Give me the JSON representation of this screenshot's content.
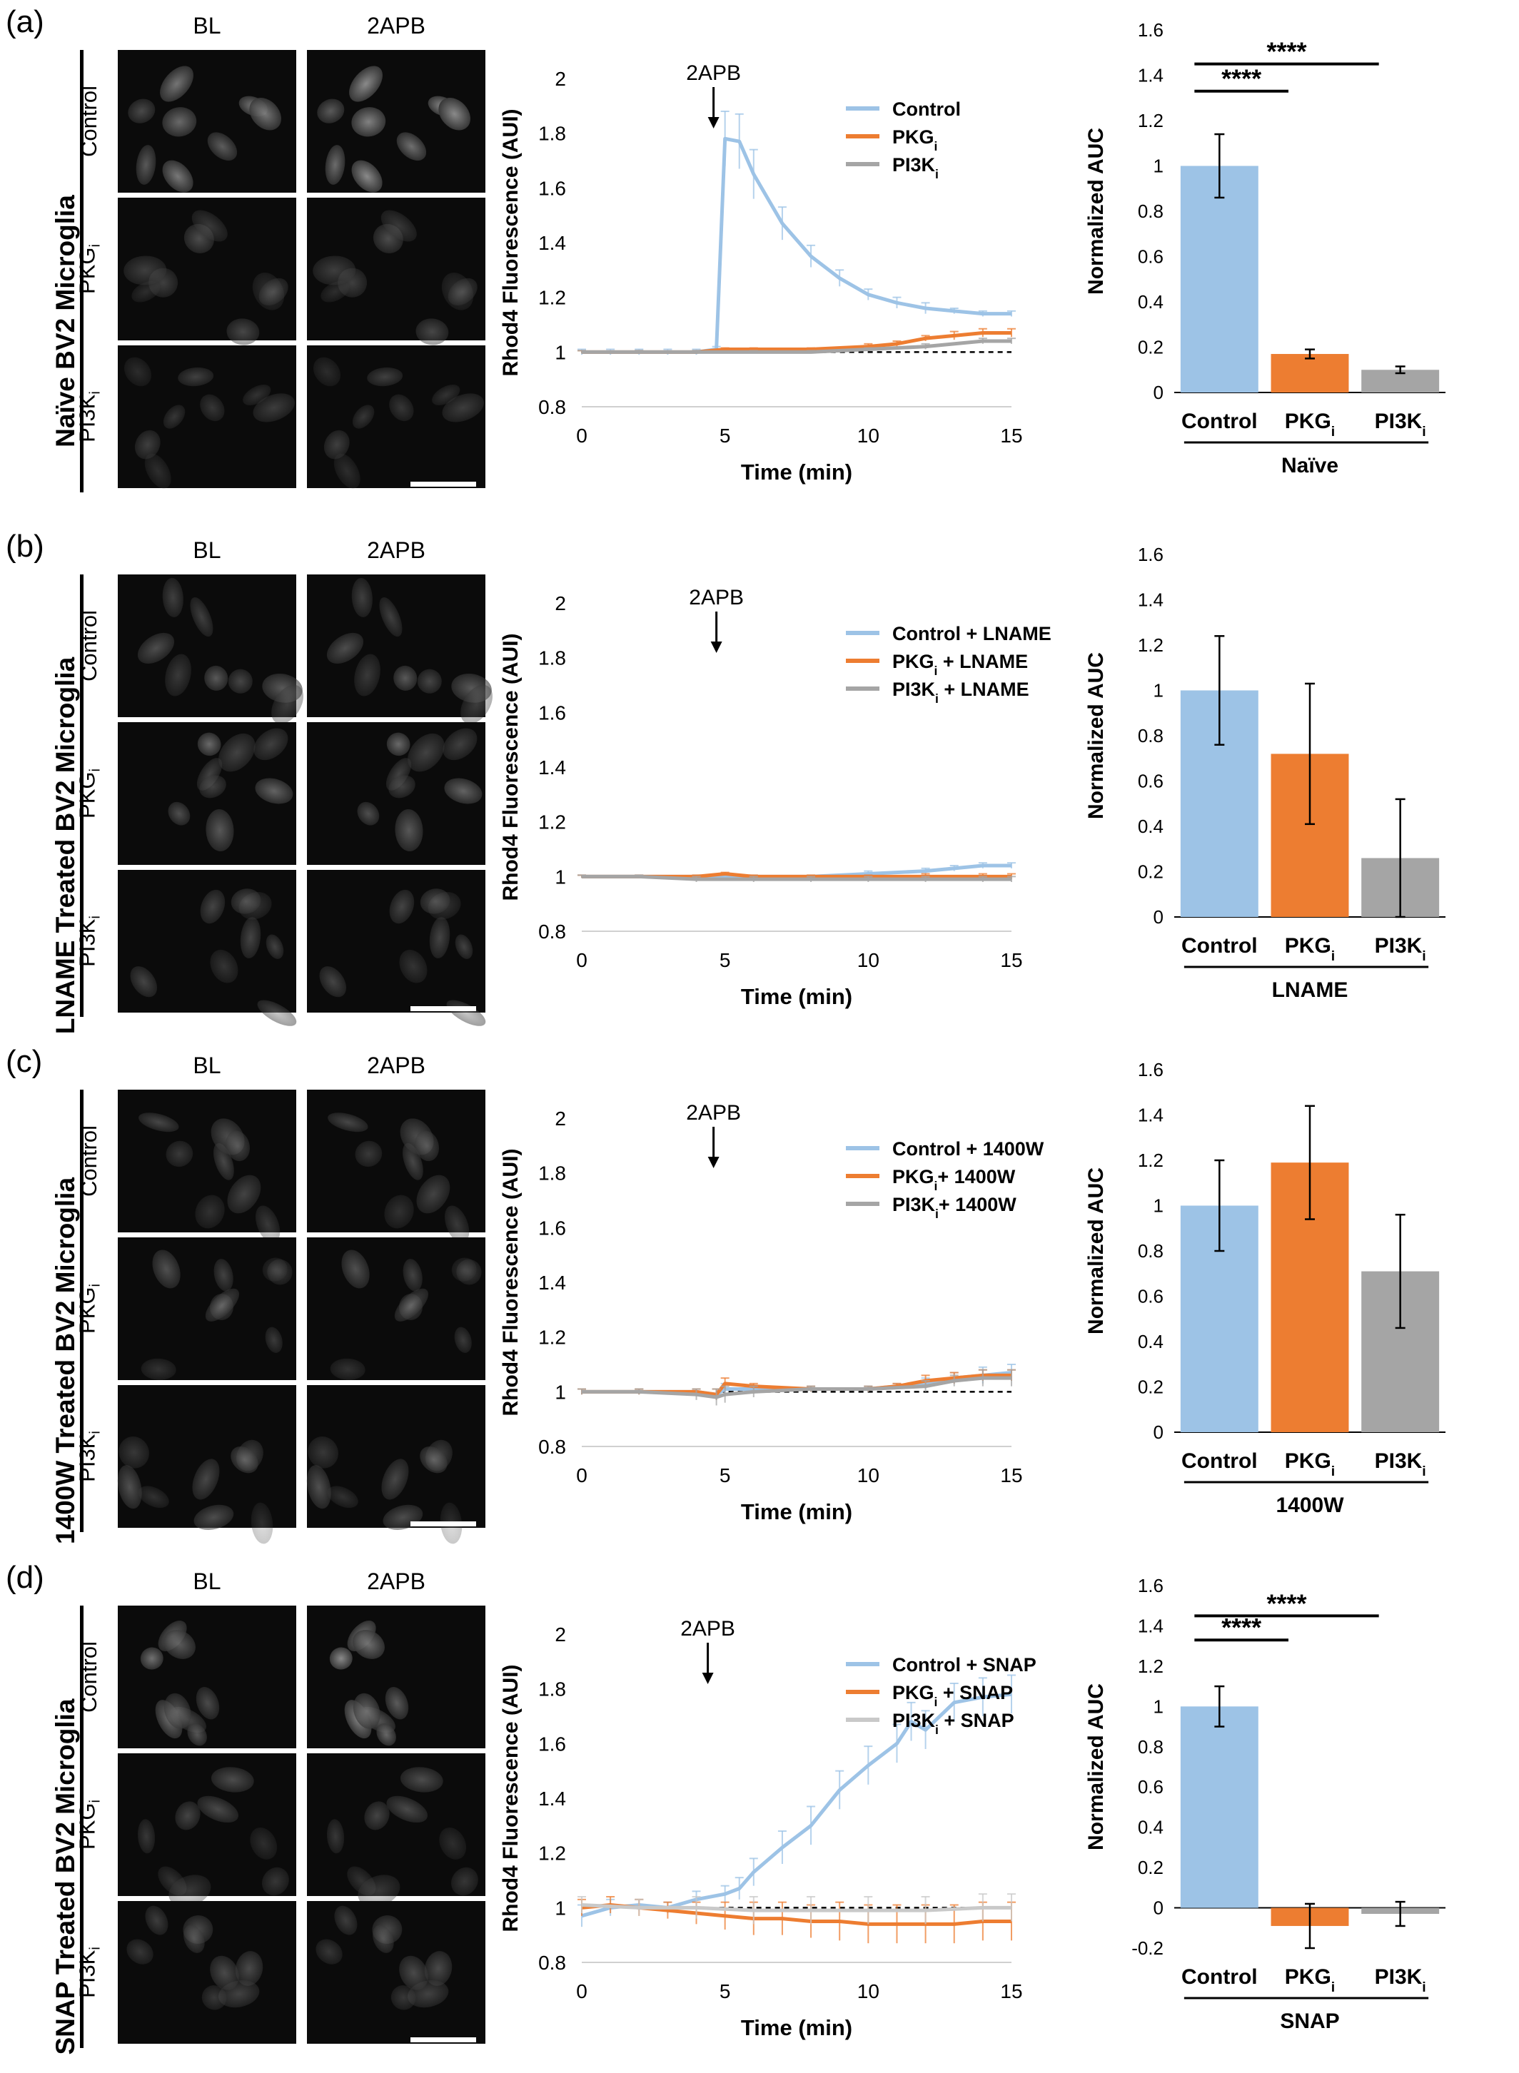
{
  "panels": [
    {
      "label": "(a)",
      "side_label": "Naïve BV2 Microglia",
      "micro": {
        "col_titles": [
          "BL",
          "2APB"
        ],
        "row_labels": [
          "Control",
          "PKGi",
          "PI3Ki"
        ],
        "bright": [
          1.0,
          0.55,
          0.55
        ]
      },
      "line": {
        "type": "line",
        "xlabel": "Time (min)",
        "ylabel": "Rhod4 Fluorescence (AUI)",
        "x_ticks": [
          "0",
          "5",
          "10",
          "15"
        ],
        "y_ticks": [
          "0.8",
          "1",
          "1.2",
          "1.4",
          "1.6",
          "1.8",
          "2"
        ],
        "xlim": [
          0,
          15
        ],
        "ylim": [
          0.8,
          2
        ],
        "annotation": "2APB",
        "arrow_x": 4.6,
        "baseline": 1,
        "series": [
          {
            "name": "Control",
            "color": "#9dc3e6",
            "x": [
              0,
              1,
              2,
              3,
              4,
              4.7,
              5,
              5.5,
              6,
              7,
              8,
              9,
              10,
              11,
              12,
              13,
              14,
              15
            ],
            "y": [
              1.0,
              1.0,
              1.0,
              1.0,
              1.0,
              1.01,
              1.78,
              1.77,
              1.65,
              1.47,
              1.35,
              1.27,
              1.21,
              1.18,
              1.16,
              1.15,
              1.14,
              1.14
            ],
            "err": [
              0.01,
              0.01,
              0.01,
              0.01,
              0.01,
              0.01,
              0.1,
              0.1,
              0.09,
              0.06,
              0.04,
              0.03,
              0.02,
              0.02,
              0.02,
              0.01,
              0.01,
              0.01
            ]
          },
          {
            "name": "PKGi",
            "color": "#ed7d31",
            "x": [
              0,
              2,
              4,
              5,
              6,
              8,
              10,
              11,
              12,
              13,
              14,
              15
            ],
            "y": [
              1.0,
              1.0,
              1.0,
              1.01,
              1.01,
              1.01,
              1.02,
              1.03,
              1.05,
              1.06,
              1.07,
              1.07
            ],
            "err": [
              0.005,
              0.005,
              0.005,
              0.005,
              0.005,
              0.005,
              0.01,
              0.01,
              0.01,
              0.015,
              0.015,
              0.015
            ]
          },
          {
            "name": "PI3Ki",
            "color": "#a5a5a5",
            "x": [
              0,
              2,
              4,
              6,
              8,
              10,
              12,
              14,
              15
            ],
            "y": [
              1.0,
              1.0,
              1.0,
              1.0,
              1.0,
              1.01,
              1.02,
              1.04,
              1.04
            ],
            "err": [
              0.005,
              0.005,
              0.005,
              0.005,
              0.005,
              0.005,
              0.01,
              0.01,
              0.01
            ]
          }
        ]
      },
      "bar": {
        "type": "bar",
        "ylabel": "Normalized AUC",
        "group_label": "Naïve",
        "categories": [
          "Control",
          "PKGi",
          "PI3Ki"
        ],
        "values": [
          1.0,
          0.17,
          0.1
        ],
        "errors": [
          0.14,
          0.02,
          0.015
        ],
        "colors": [
          "#9dc3e6",
          "#ed7d31",
          "#a5a5a5"
        ],
        "y_ticks": [
          "0",
          "0.2",
          "0.4",
          "0.6",
          "0.8",
          "1",
          "1.2",
          "1.4",
          "1.6"
        ],
        "ylim": [
          0,
          1.6
        ],
        "significance": [
          {
            "from": 0,
            "to": 1,
            "label": "****"
          },
          {
            "from": 0,
            "to": 2,
            "label": "****"
          }
        ]
      }
    },
    {
      "label": "(b)",
      "side_label": "LNAME Treated BV2 Microglia",
      "micro": {
        "col_titles": [
          "BL",
          "2APB"
        ],
        "row_labels": [
          "Control",
          "PKGi",
          "PI3Ki"
        ],
        "bright": [
          0.75,
          0.8,
          0.6
        ]
      },
      "line": {
        "type": "line",
        "xlabel": "Time (min)",
        "ylabel": "Rhod4 Fluorescence (AUI)",
        "x_ticks": [
          "0",
          "5",
          "10",
          "15"
        ],
        "y_ticks": [
          "0.8",
          "1",
          "1.2",
          "1.4",
          "1.6",
          "1.8",
          "2"
        ],
        "xlim": [
          0,
          15
        ],
        "ylim": [
          0.8,
          2
        ],
        "annotation": "2APB",
        "arrow_x": 4.7,
        "baseline": 1,
        "series": [
          {
            "name": "Control + LNAME",
            "color": "#9dc3e6",
            "x": [
              0,
              2,
              4,
              6,
              8,
              10,
              12,
              13,
              14,
              15
            ],
            "y": [
              1.0,
              1.0,
              1.0,
              1.0,
              1.0,
              1.01,
              1.02,
              1.03,
              1.04,
              1.04
            ],
            "err": [
              0.005,
              0.005,
              0.005,
              0.005,
              0.005,
              0.01,
              0.01,
              0.01,
              0.01,
              0.01
            ]
          },
          {
            "name": "PKGi + LNAME",
            "color": "#ed7d31",
            "x": [
              0,
              2,
              4,
              5,
              6,
              8,
              10,
              12,
              14,
              15
            ],
            "y": [
              1.0,
              1.0,
              1.0,
              1.01,
              1.0,
              1.0,
              1.0,
              1.0,
              1.0,
              1.0
            ],
            "err": [
              0.005,
              0.005,
              0.005,
              0.005,
              0.005,
              0.005,
              0.005,
              0.01,
              0.01,
              0.01
            ]
          },
          {
            "name": "PI3Ki + LNAME",
            "color": "#a5a5a5",
            "x": [
              0,
              2,
              4,
              6,
              8,
              10,
              12,
              14,
              15
            ],
            "y": [
              1.0,
              1.0,
              0.99,
              0.99,
              0.99,
              0.99,
              0.99,
              0.99,
              0.99
            ],
            "err": [
              0.005,
              0.005,
              0.01,
              0.01,
              0.01,
              0.01,
              0.01,
              0.01,
              0.01
            ]
          }
        ]
      },
      "bar": {
        "type": "bar",
        "ylabel": "Normalized AUC",
        "group_label": "LNAME",
        "categories": [
          "Control",
          "PKGi",
          "PI3Ki"
        ],
        "values": [
          1.0,
          0.72,
          0.26
        ],
        "errors": [
          0.24,
          0.31,
          0.26
        ],
        "colors": [
          "#9dc3e6",
          "#ed7d31",
          "#a5a5a5"
        ],
        "y_ticks": [
          "0",
          "0.2",
          "0.4",
          "0.6",
          "0.8",
          "1",
          "1.2",
          "1.4",
          "1.6"
        ],
        "ylim": [
          0,
          1.6
        ],
        "significance": []
      }
    },
    {
      "label": "(c)",
      "side_label": "1400W Treated BV2 Microglia",
      "micro": {
        "col_titles": [
          "BL",
          "2APB"
        ],
        "row_labels": [
          "Control",
          "PKGi",
          "PI3Ki"
        ],
        "bright": [
          0.6,
          0.6,
          0.6
        ]
      },
      "line": {
        "type": "line",
        "xlabel": "Time (min)",
        "ylabel": "Rhod4 Fluorescence (AUI)",
        "x_ticks": [
          "0",
          "5",
          "10",
          "15"
        ],
        "y_ticks": [
          "0.8",
          "1",
          "1.2",
          "1.4",
          "1.6",
          "1.8",
          "2"
        ],
        "xlim": [
          0,
          15
        ],
        "ylim": [
          0.8,
          2
        ],
        "annotation": "2APB",
        "arrow_x": 4.6,
        "baseline": 1,
        "series": [
          {
            "name": "Control + 1400W",
            "color": "#9dc3e6",
            "x": [
              0,
              2,
              4,
              4.7,
              5,
              6,
              8,
              10,
              11,
              12,
              13,
              14,
              15
            ],
            "y": [
              1.0,
              1.0,
              1.0,
              0.99,
              1.01,
              1.01,
              1.01,
              1.01,
              1.02,
              1.03,
              1.05,
              1.06,
              1.07
            ],
            "err": [
              0.01,
              0.01,
              0.01,
              0.02,
              0.02,
              0.01,
              0.01,
              0.01,
              0.01,
              0.02,
              0.02,
              0.03,
              0.03
            ]
          },
          {
            "name": "PKGi+ 1400W",
            "color": "#ed7d31",
            "x": [
              0,
              2,
              4,
              4.7,
              5,
              6,
              8,
              10,
              11,
              12,
              13,
              14,
              15
            ],
            "y": [
              1.0,
              1.0,
              1.0,
              0.99,
              1.03,
              1.02,
              1.01,
              1.01,
              1.02,
              1.04,
              1.05,
              1.06,
              1.06
            ],
            "err": [
              0.01,
              0.01,
              0.01,
              0.02,
              0.02,
              0.01,
              0.01,
              0.01,
              0.01,
              0.02,
              0.02,
              0.02,
              0.02
            ]
          },
          {
            "name": "PI3Ki+ 1400W",
            "color": "#a5a5a5",
            "x": [
              0,
              2,
              4,
              4.7,
              5,
              6,
              8,
              10,
              12,
              13,
              14,
              15
            ],
            "y": [
              1.0,
              1.0,
              0.99,
              0.98,
              0.99,
              1.0,
              1.01,
              1.01,
              1.02,
              1.04,
              1.05,
              1.05
            ],
            "err": [
              0.01,
              0.01,
              0.02,
              0.03,
              0.03,
              0.02,
              0.01,
              0.01,
              0.02,
              0.02,
              0.03,
              0.03
            ]
          }
        ]
      },
      "bar": {
        "type": "bar",
        "ylabel": "Normalized AUC",
        "group_label": "1400W",
        "categories": [
          "Control",
          "PKGi",
          "PI3Ki"
        ],
        "values": [
          1.0,
          1.19,
          0.71
        ],
        "errors": [
          0.2,
          0.25,
          0.25
        ],
        "colors": [
          "#9dc3e6",
          "#ed7d31",
          "#a5a5a5"
        ],
        "y_ticks": [
          "0",
          "0.2",
          "0.4",
          "0.6",
          "0.8",
          "1",
          "1.2",
          "1.4",
          "1.6"
        ],
        "ylim": [
          0,
          1.6
        ],
        "significance": []
      }
    },
    {
      "label": "(d)",
      "side_label": "SNAP Treated BV2 Microglia",
      "micro": {
        "col_titles": [
          "BL",
          "2APB"
        ],
        "row_labels": [
          "Control",
          "PKGi",
          "PI3Ki"
        ],
        "bright": [
          0.85,
          0.55,
          0.7
        ]
      },
      "line": {
        "type": "line",
        "xlabel": "Time (min)",
        "ylabel": "Rhod4 Fluorescence (AUI)",
        "x_ticks": [
          "0",
          "5",
          "10",
          "15"
        ],
        "y_ticks": [
          "0.8",
          "1",
          "1.2",
          "1.4",
          "1.6",
          "1.8",
          "2"
        ],
        "xlim": [
          0,
          15
        ],
        "ylim": [
          0.8,
          2
        ],
        "annotation": "2APB",
        "arrow_x": 4.4,
        "baseline": 1,
        "series": [
          {
            "name": "Control + SNAP",
            "color": "#9dc3e6",
            "x": [
              0,
              1,
              2,
              3,
              4,
              5,
              5.5,
              6,
              7,
              8,
              9,
              10,
              11,
              11.5,
              12,
              13,
              14,
              15
            ],
            "y": [
              0.97,
              1.0,
              1.01,
              1.0,
              1.03,
              1.05,
              1.07,
              1.13,
              1.22,
              1.3,
              1.43,
              1.52,
              1.6,
              1.68,
              1.65,
              1.75,
              1.77,
              1.78
            ],
            "err": [
              0.04,
              0.03,
              0.02,
              0.02,
              0.03,
              0.03,
              0.04,
              0.05,
              0.06,
              0.07,
              0.07,
              0.07,
              0.07,
              0.07,
              0.07,
              0.07,
              0.07,
              0.07
            ]
          },
          {
            "name": "PKGi + SNAP",
            "color": "#ed7d31",
            "x": [
              0,
              1,
              2,
              3,
              4,
              5,
              6,
              7,
              8,
              9,
              10,
              11,
              12,
              13,
              14,
              15
            ],
            "y": [
              1.0,
              1.01,
              1.0,
              0.99,
              0.98,
              0.97,
              0.96,
              0.96,
              0.95,
              0.95,
              0.94,
              0.94,
              0.94,
              0.94,
              0.95,
              0.95
            ],
            "err": [
              0.03,
              0.03,
              0.03,
              0.03,
              0.04,
              0.05,
              0.06,
              0.06,
              0.06,
              0.07,
              0.07,
              0.07,
              0.07,
              0.07,
              0.07,
              0.07
            ]
          },
          {
            "name": "PI3Ki + SNAP",
            "color": "#c9c9c9",
            "x": [
              0,
              2,
              4,
              6,
              8,
              10,
              12,
              14,
              15
            ],
            "y": [
              1.01,
              1.0,
              1.0,
              0.99,
              0.99,
              0.99,
              0.99,
              1.0,
              1.0
            ],
            "err": [
              0.03,
              0.03,
              0.04,
              0.05,
              0.05,
              0.05,
              0.05,
              0.05,
              0.05
            ]
          }
        ]
      },
      "bar": {
        "type": "bar",
        "ylabel": "Normalized AUC",
        "group_label": "SNAP",
        "categories": [
          "Control",
          "PKGi",
          "PI3Ki"
        ],
        "values": [
          1.0,
          -0.09,
          -0.03
        ],
        "errors": [
          0.1,
          0.11,
          0.06
        ],
        "colors": [
          "#9dc3e6",
          "#ed7d31",
          "#a5a5a5"
        ],
        "y_ticks": [
          "-0.2",
          "0",
          "0.2",
          "0.4",
          "0.6",
          "0.8",
          "1",
          "1.2",
          "1.4",
          "1.6"
        ],
        "ylim": [
          -0.2,
          1.6
        ],
        "significance": [
          {
            "from": 0,
            "to": 1,
            "label": "****"
          },
          {
            "from": 0,
            "to": 2,
            "label": "****"
          }
        ]
      }
    }
  ]
}
